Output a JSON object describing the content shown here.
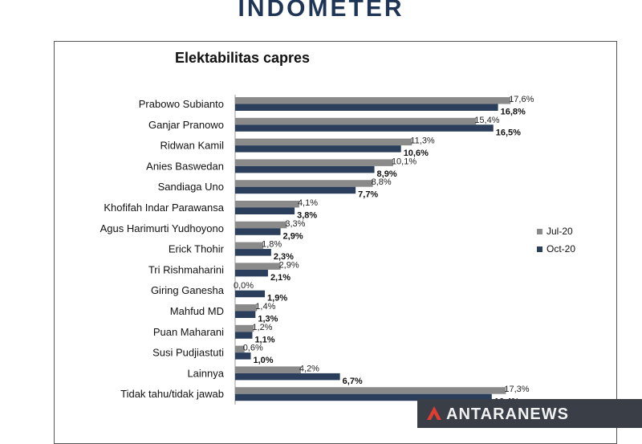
{
  "brand": "INDOMETER",
  "watermark": "ANTARANEWS",
  "colors": {
    "jul": "#8a8a8a",
    "oct": "#2b3f5c"
  },
  "chart_data": {
    "type": "bar",
    "orientation": "horizontal",
    "title": "Elektabilitas capres",
    "xlim": [
      0,
      20
    ],
    "grid": false,
    "legend_position": "right",
    "categories": [
      "Prabowo Subianto",
      "Ganjar Pranowo",
      "Ridwan Kamil",
      "Anies Baswedan",
      "Sandiaga Uno",
      "Khofifah Indar Parawansa",
      "Agus Harimurti Yudhoyono",
      "Erick Thohir",
      "Tri Rishmaharini",
      "Giring Ganesha",
      "Mahfud MD",
      "Puan Maharani",
      "Susi Pudjiastuti",
      "Lainnya",
      "Tidak tahu/tidak jawab"
    ],
    "series": [
      {
        "name": "Jul-20",
        "values": [
          17.6,
          15.4,
          11.3,
          10.1,
          8.8,
          4.1,
          3.3,
          1.8,
          2.9,
          0.0,
          1.4,
          1.2,
          0.6,
          4.2,
          17.3
        ],
        "labels": [
          "17,6%",
          "15,4%",
          "11,3%",
          "10,1%",
          "8,8%",
          "4,1%",
          "3,3%",
          "1,8%",
          "2,9%",
          "0,0%",
          "1,4%",
          "1,2%",
          "0,6%",
          "4,2%",
          "17,3%"
        ]
      },
      {
        "name": "Oct-20",
        "values": [
          16.8,
          16.5,
          10.6,
          8.9,
          7.7,
          3.8,
          2.9,
          2.3,
          2.1,
          1.9,
          1.3,
          1.1,
          1.0,
          6.7,
          16.4
        ],
        "labels": [
          "16,8%",
          "16,5%",
          "10,6%",
          "8,9%",
          "7,7%",
          "3,8%",
          "2,9%",
          "2,3%",
          "2,1%",
          "1,9%",
          "1,3%",
          "1,1%",
          "1,0%",
          "6,7%",
          "16,4%"
        ]
      }
    ]
  }
}
